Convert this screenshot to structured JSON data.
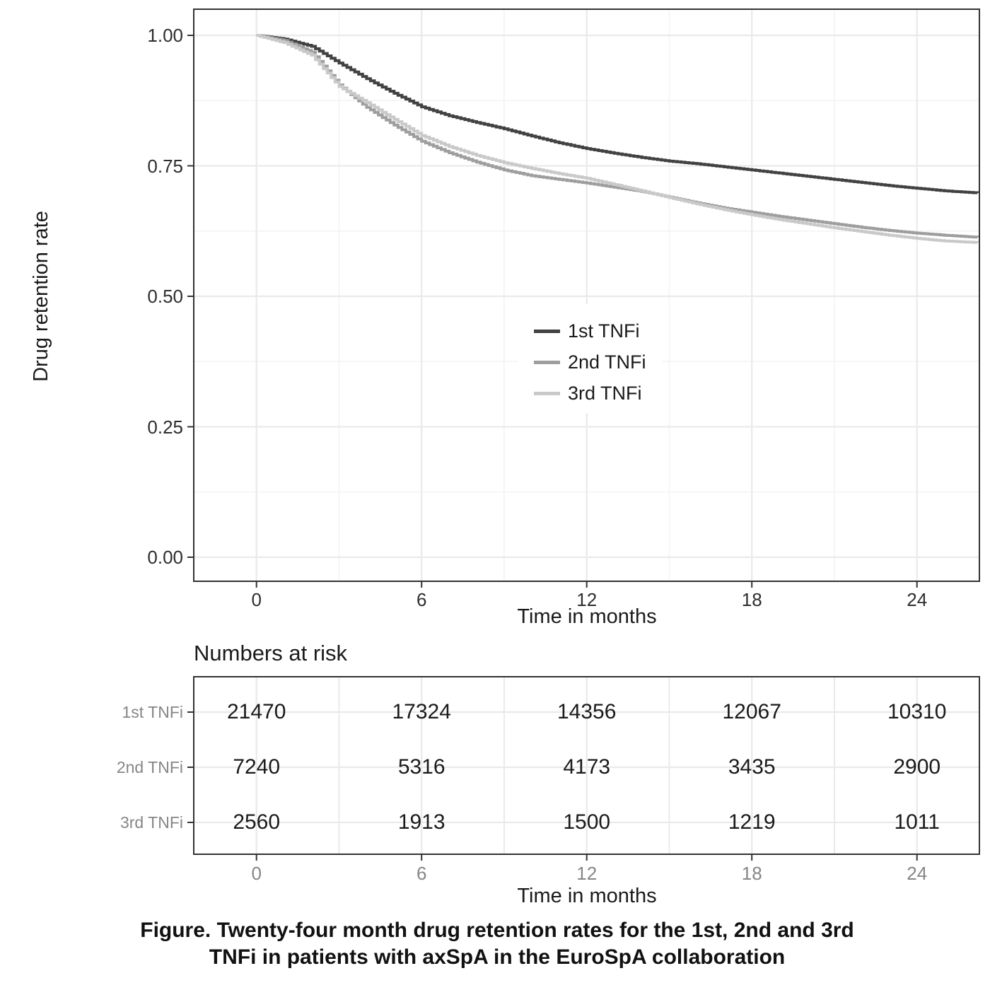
{
  "figure": {
    "caption_line1": "Figure. Twenty-four month drug retention rates for the 1st, 2nd and 3rd",
    "caption_line2": "TNFi in patients with axSpA in the EuroSpA collaboration"
  },
  "colors": {
    "series_1st": "#424242",
    "series_2nd": "#9e9e9e",
    "series_3rd": "#c9c9c9",
    "grid_major": "#eaeaea",
    "grid_minor": "#f3f3f3",
    "panel_border": "#333333",
    "axis_text_main": "#2e2e2e",
    "axis_text_risk": "#868686",
    "legend_background": "#ffffff"
  },
  "chart_data": [
    {
      "type": "line",
      "curve_style": "kaplan-meier-step",
      "title": "",
      "xlabel": "Time in months",
      "ylabel": "Drug retention rate",
      "xlim": [
        -2.3,
        26.3
      ],
      "ylim": [
        -0.05,
        1.05
      ],
      "x_ticks": [
        0,
        6,
        12,
        18,
        24
      ],
      "x_minor_ticks": [
        3,
        9,
        15,
        21
      ],
      "y_ticks": [
        "0.00",
        "0.25",
        "0.50",
        "0.75",
        "1.00"
      ],
      "y_tick_values": [
        0,
        0.25,
        0.5,
        0.75,
        1.0
      ],
      "y_minor_tick_values": [
        0.125,
        0.375,
        0.625,
        0.875
      ],
      "grid": true,
      "legend_position": "inside-center",
      "series": [
        {
          "name": "1st TNFi",
          "color": "#424242",
          "x": [
            0,
            1,
            2,
            3,
            4,
            5,
            6,
            7,
            8,
            9,
            10,
            11,
            12,
            13,
            14,
            15,
            16,
            17,
            18,
            19,
            20,
            21,
            22,
            23,
            24,
            25,
            26.2
          ],
          "y": [
            1.0,
            0.993,
            0.979,
            0.947,
            0.917,
            0.889,
            0.863,
            0.846,
            0.833,
            0.821,
            0.807,
            0.794,
            0.783,
            0.774,
            0.766,
            0.759,
            0.754,
            0.748,
            0.742,
            0.736,
            0.73,
            0.724,
            0.718,
            0.712,
            0.707,
            0.702,
            0.698
          ]
        },
        {
          "name": "2nd TNFi",
          "color": "#9e9e9e",
          "x": [
            0,
            1,
            2,
            3,
            4,
            5,
            6,
            7,
            8,
            9,
            10,
            11,
            12,
            13,
            14,
            15,
            16,
            17,
            18,
            19,
            20,
            21,
            22,
            23,
            24,
            25,
            26.2
          ],
          "y": [
            1.0,
            0.99,
            0.968,
            0.905,
            0.862,
            0.828,
            0.797,
            0.775,
            0.757,
            0.742,
            0.731,
            0.724,
            0.717,
            0.709,
            0.701,
            0.69,
            0.679,
            0.669,
            0.661,
            0.653,
            0.646,
            0.639,
            0.632,
            0.626,
            0.621,
            0.617,
            0.613
          ]
        },
        {
          "name": "3rd TNFi",
          "color": "#c9c9c9",
          "x": [
            0,
            1,
            2,
            3,
            4,
            5,
            6,
            7,
            8,
            9,
            10,
            11,
            12,
            13,
            14,
            15,
            16,
            17,
            18,
            19,
            20,
            21,
            22,
            23,
            24,
            25,
            26.2
          ],
          "y": [
            1.0,
            0.986,
            0.962,
            0.902,
            0.871,
            0.839,
            0.808,
            0.787,
            0.77,
            0.756,
            0.745,
            0.735,
            0.726,
            0.714,
            0.702,
            0.689,
            0.677,
            0.666,
            0.656,
            0.647,
            0.639,
            0.631,
            0.624,
            0.617,
            0.611,
            0.606,
            0.603
          ]
        }
      ]
    },
    {
      "type": "table",
      "title": "Numbers at risk",
      "xlabel": "Time in months",
      "categories": [
        0,
        6,
        12,
        18,
        24
      ],
      "x_tick_labels": [
        "0",
        "6",
        "12",
        "18",
        "24"
      ],
      "rows": [
        {
          "label": "1st TNFi",
          "values": [
            "21470",
            "17324",
            "14356",
            "12067",
            "10310"
          ]
        },
        {
          "label": "2nd TNFi",
          "values": [
            "7240",
            "5316",
            "4173",
            "3435",
            "2900"
          ]
        },
        {
          "label": "3rd TNFi",
          "values": [
            "2560",
            "1913",
            "1500",
            "1219",
            "1011"
          ]
        }
      ]
    }
  ]
}
